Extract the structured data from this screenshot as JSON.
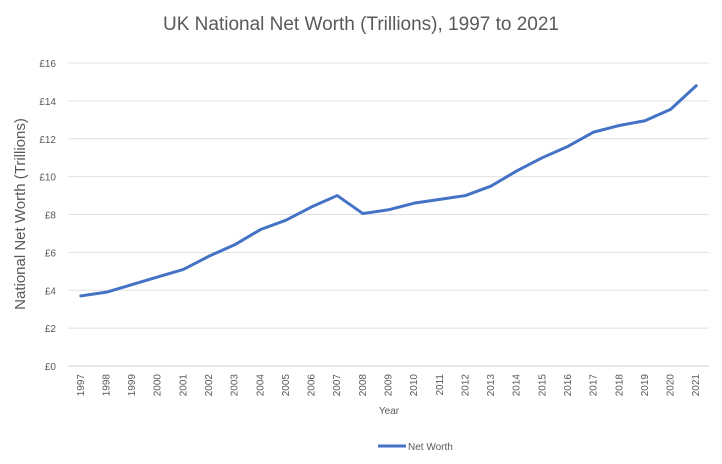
{
  "chart_data": {
    "type": "line",
    "title": "UK National Net Worth (Trillions), 1997 to 2021",
    "xlabel": "Year",
    "ylabel": "National Net Worth (Trillions)",
    "x": [
      "1997",
      "1998",
      "1999",
      "2000",
      "2001",
      "2002",
      "2003",
      "2004",
      "2005",
      "2006",
      "2007",
      "2008",
      "2009",
      "2010",
      "2011",
      "2012",
      "2013",
      "2014",
      "2015",
      "2016",
      "2017",
      "2018",
      "2019",
      "2020",
      "2021"
    ],
    "y_ticks": [
      "£0",
      "£2",
      "£4",
      "£6",
      "£8",
      "£10",
      "£12",
      "£14",
      "£16"
    ],
    "ylim": [
      0,
      16
    ],
    "grid": true,
    "legend_position": "bottom",
    "series": [
      {
        "name": "Net Worth",
        "color": "#4472C4",
        "values": [
          3.7,
          3.9,
          4.3,
          4.7,
          5.1,
          5.8,
          6.4,
          7.2,
          7.7,
          8.4,
          9.0,
          8.05,
          8.25,
          8.6,
          8.8,
          9.0,
          9.5,
          10.3,
          11.0,
          11.6,
          12.35,
          12.7,
          12.95,
          13.55,
          14.8
        ]
      }
    ]
  }
}
